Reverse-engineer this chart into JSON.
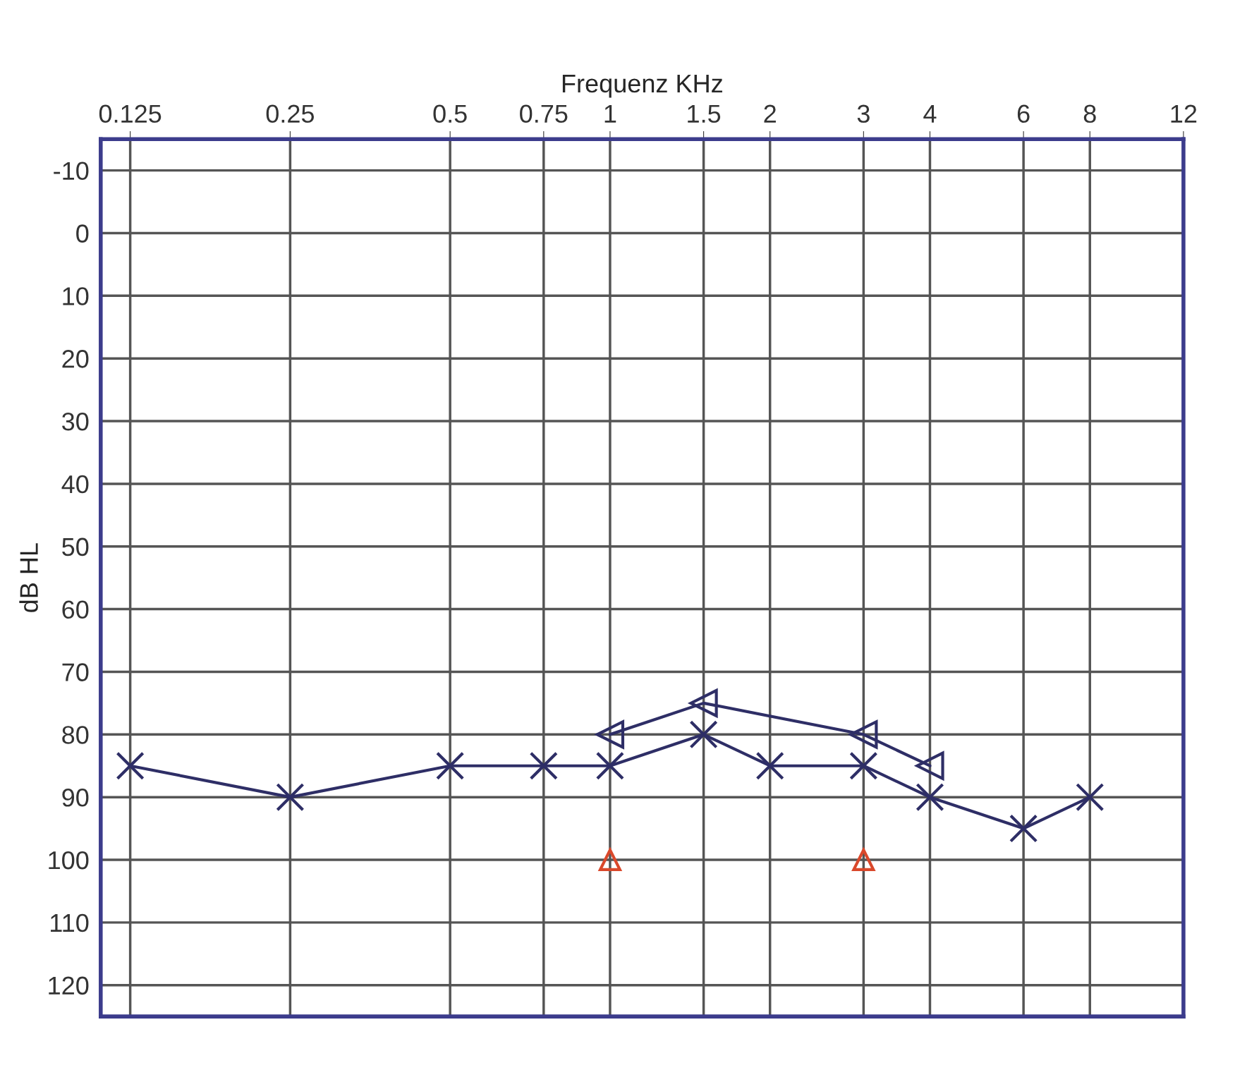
{
  "chart_data": {
    "type": "line",
    "xlabel": "Frequenz KHz",
    "ylabel": "dB HL",
    "log": "x",
    "xlim": [
      0.11,
      12
    ],
    "xticks": [
      0.125,
      0.25,
      0.5,
      0.75,
      1,
      1.5,
      2,
      3,
      4,
      6,
      8,
      12
    ],
    "ylim": [
      125,
      -15
    ],
    "yticks": [
      -10,
      0,
      10,
      20,
      30,
      40,
      50,
      60,
      70,
      80,
      90,
      100,
      110,
      120
    ],
    "grid": true,
    "legend": false,
    "series": [
      {
        "type": "line",
        "color": "#2e2e66",
        "marker": "cross",
        "line_style": "solid",
        "x": [
          0.125,
          0.25,
          0.5,
          0.75,
          1,
          1.5,
          2,
          3,
          4,
          6,
          8
        ],
        "values": [
          85,
          90,
          85,
          85,
          85,
          80,
          85,
          85,
          90,
          95,
          90
        ]
      },
      {
        "type": "line",
        "color": "#2e2e66",
        "marker": "triangle",
        "line_style": "solid",
        "x": [
          1,
          1.5,
          3,
          4
        ],
        "values": [
          80,
          75,
          80,
          85
        ]
      },
      {
        "type": "scatter",
        "color": "#d9482b",
        "marker": "triangle",
        "x": [
          1,
          3
        ],
        "values": [
          100,
          100
        ]
      }
    ]
  }
}
